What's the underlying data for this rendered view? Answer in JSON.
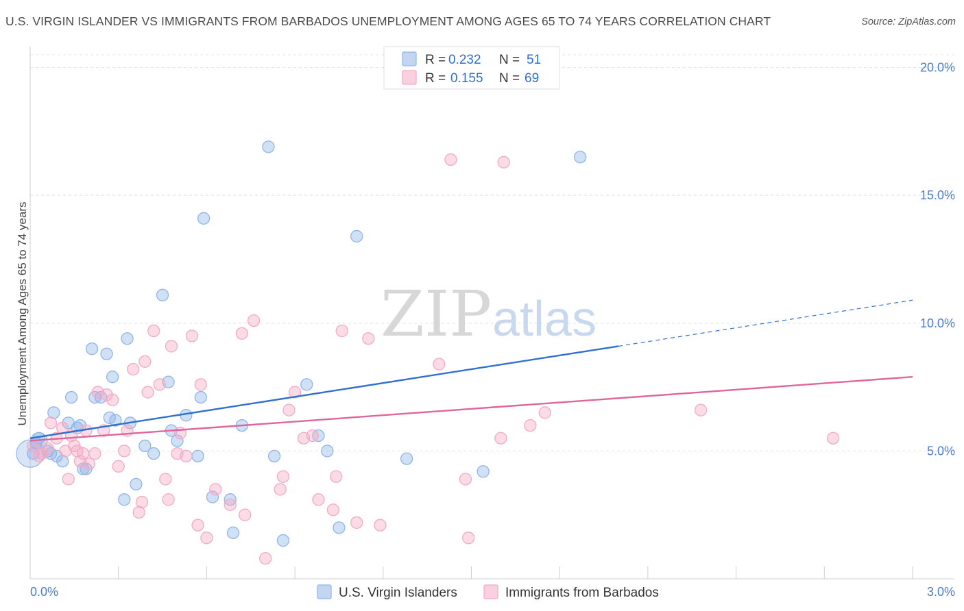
{
  "title": "U.S. VIRGIN ISLANDER VS IMMIGRANTS FROM BARBADOS UNEMPLOYMENT AMONG AGES 65 TO 74 YEARS CORRELATION CHART",
  "source": "Source: ZipAtlas.com",
  "watermark": {
    "zip": "ZIP",
    "atlas": "atlas"
  },
  "chart_data": {
    "type": "scatter",
    "title": "U.S. VIRGIN ISLANDER VS IMMIGRANTS FROM BARBADOS UNEMPLOYMENT AMONG AGES 65 TO 74 YEARS CORRELATION CHART",
    "xlabel": "",
    "ylabel": "Unemployment Among Ages 65 to 74 years",
    "xlim": [
      0,
      3.0
    ],
    "ylim": [
      0,
      20.5
    ],
    "x_tick_labels": {
      "left": "0.0%",
      "right": "3.0%"
    },
    "y_ticks": [
      {
        "value": 5,
        "label": "5.0%"
      },
      {
        "value": 10,
        "label": "10.0%"
      },
      {
        "value": 15,
        "label": "15.0%"
      },
      {
        "value": 20,
        "label": "20.0%"
      }
    ],
    "grid": true,
    "legend_position": "top-center",
    "series": [
      {
        "name": "U.S. Virgin Islanders",
        "color": "#8fb5e8",
        "line_color": "#2f6fd0",
        "R": "0.232",
        "N": "51",
        "trend": {
          "x0": 0.0,
          "y0": 5.5,
          "x1": 2.0,
          "y1": 9.1,
          "x_dash_end": 3.0,
          "y_dash_end": 10.9
        },
        "points": [
          [
            0.01,
            4.9
          ],
          [
            0.02,
            5.3
          ],
          [
            0.03,
            5.5
          ],
          [
            0.06,
            5.0
          ],
          [
            0.07,
            4.9
          ],
          [
            0.08,
            6.5
          ],
          [
            0.09,
            4.8
          ],
          [
            0.11,
            4.6
          ],
          [
            0.13,
            6.1
          ],
          [
            0.14,
            7.1
          ],
          [
            0.16,
            5.9
          ],
          [
            0.17,
            6.0
          ],
          [
            0.18,
            4.3
          ],
          [
            0.19,
            4.3
          ],
          [
            0.21,
            9.0
          ],
          [
            0.22,
            7.1
          ],
          [
            0.24,
            7.1
          ],
          [
            0.26,
            8.8
          ],
          [
            0.27,
            6.3
          ],
          [
            0.28,
            7.9
          ],
          [
            0.29,
            6.2
          ],
          [
            0.32,
            3.1
          ],
          [
            0.33,
            9.4
          ],
          [
            0.34,
            6.1
          ],
          [
            0.36,
            3.7
          ],
          [
            0.39,
            5.2
          ],
          [
            0.42,
            4.9
          ],
          [
            0.45,
            11.1
          ],
          [
            0.47,
            7.7
          ],
          [
            0.48,
            5.8
          ],
          [
            0.5,
            5.4
          ],
          [
            0.53,
            6.4
          ],
          [
            0.57,
            4.8
          ],
          [
            0.58,
            7.1
          ],
          [
            0.59,
            14.1
          ],
          [
            0.62,
            3.2
          ],
          [
            0.68,
            3.1
          ],
          [
            0.69,
            1.8
          ],
          [
            0.72,
            6.0
          ],
          [
            0.81,
            16.9
          ],
          [
            0.83,
            4.8
          ],
          [
            0.86,
            1.5
          ],
          [
            0.94,
            7.6
          ],
          [
            0.98,
            5.6
          ],
          [
            1.01,
            5.0
          ],
          [
            1.05,
            2.0
          ],
          [
            1.11,
            13.4
          ],
          [
            1.28,
            4.7
          ],
          [
            1.54,
            4.2
          ],
          [
            1.87,
            16.5
          ]
        ]
      },
      {
        "name": "Immigrants from Barbados",
        "color": "#f4a9c4",
        "line_color": "#e0659a",
        "R": "0.155",
        "N": "69",
        "trend": {
          "x0": 0.0,
          "y0": 5.4,
          "x1": 3.0,
          "y1": 7.9
        },
        "points": [
          [
            0.01,
            5.2
          ],
          [
            0.03,
            4.8
          ],
          [
            0.04,
            4.9
          ],
          [
            0.06,
            5.1
          ],
          [
            0.07,
            6.1
          ],
          [
            0.09,
            5.5
          ],
          [
            0.11,
            5.9
          ],
          [
            0.12,
            5.0
          ],
          [
            0.13,
            3.9
          ],
          [
            0.14,
            5.6
          ],
          [
            0.15,
            5.2
          ],
          [
            0.16,
            5.0
          ],
          [
            0.17,
            4.6
          ],
          [
            0.18,
            4.9
          ],
          [
            0.19,
            5.8
          ],
          [
            0.2,
            4.5
          ],
          [
            0.22,
            4.9
          ],
          [
            0.23,
            7.3
          ],
          [
            0.25,
            5.8
          ],
          [
            0.26,
            7.2
          ],
          [
            0.28,
            7.0
          ],
          [
            0.3,
            4.4
          ],
          [
            0.32,
            5.0
          ],
          [
            0.33,
            5.8
          ],
          [
            0.35,
            8.2
          ],
          [
            0.37,
            2.6
          ],
          [
            0.38,
            3.0
          ],
          [
            0.39,
            8.5
          ],
          [
            0.4,
            7.3
          ],
          [
            0.42,
            9.7
          ],
          [
            0.44,
            7.6
          ],
          [
            0.46,
            3.9
          ],
          [
            0.47,
            3.1
          ],
          [
            0.48,
            9.1
          ],
          [
            0.5,
            4.9
          ],
          [
            0.51,
            5.7
          ],
          [
            0.53,
            4.8
          ],
          [
            0.55,
            9.5
          ],
          [
            0.57,
            2.1
          ],
          [
            0.58,
            7.6
          ],
          [
            0.6,
            1.6
          ],
          [
            0.63,
            3.5
          ],
          [
            0.68,
            2.9
          ],
          [
            0.72,
            9.6
          ],
          [
            0.73,
            2.5
          ],
          [
            0.76,
            10.1
          ],
          [
            0.8,
            0.8
          ],
          [
            0.85,
            3.5
          ],
          [
            0.86,
            4.0
          ],
          [
            0.88,
            6.6
          ],
          [
            0.9,
            7.3
          ],
          [
            0.93,
            5.5
          ],
          [
            0.96,
            5.6
          ],
          [
            0.98,
            3.1
          ],
          [
            1.03,
            2.7
          ],
          [
            1.04,
            4.0
          ],
          [
            1.06,
            9.7
          ],
          [
            1.11,
            2.2
          ],
          [
            1.15,
            9.4
          ],
          [
            1.19,
            2.1
          ],
          [
            1.39,
            8.4
          ],
          [
            1.43,
            16.4
          ],
          [
            1.48,
            3.9
          ],
          [
            1.49,
            1.6
          ],
          [
            1.6,
            5.5
          ],
          [
            1.61,
            16.3
          ],
          [
            1.7,
            6.0
          ],
          [
            1.75,
            6.5
          ],
          [
            2.28,
            6.6
          ],
          [
            2.73,
            5.5
          ]
        ]
      }
    ]
  }
}
